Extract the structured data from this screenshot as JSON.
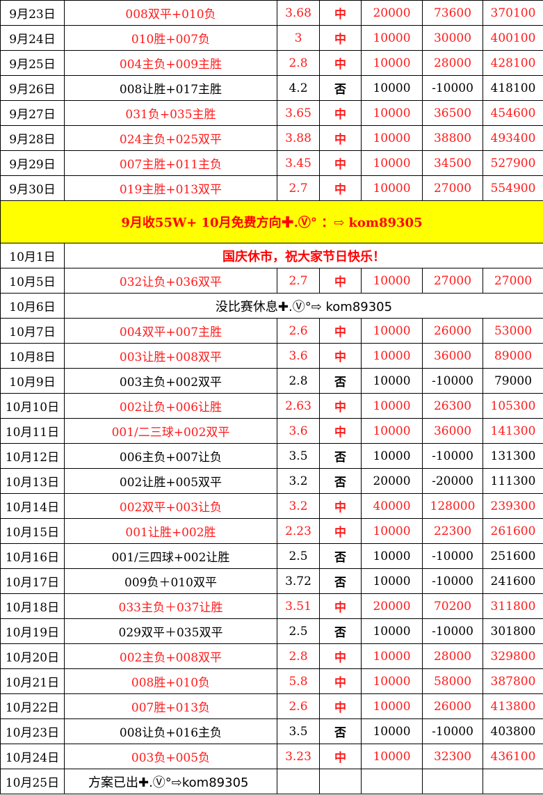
{
  "rows_sept": [
    {
      "date": "9月23日",
      "match": "008双平+010负",
      "odds": "3.68",
      "result": "中",
      "stake": "20000",
      "profit": "73600",
      "total": "370100",
      "win": true
    },
    {
      "date": "9月24日",
      "match": "010胜+007负",
      "odds": "3",
      "result": "中",
      "stake": "10000",
      "profit": "30000",
      "total": "400100",
      "win": true
    },
    {
      "date": "9月25日",
      "match": "004主负+009主胜",
      "odds": "2.8",
      "result": "中",
      "stake": "10000",
      "profit": "28000",
      "total": "428100",
      "win": true
    },
    {
      "date": "9月26日",
      "match": "008让胜+017主胜",
      "odds": "4.2",
      "result": "否",
      "stake": "10000",
      "profit": "-10000",
      "total": "418100",
      "win": false
    },
    {
      "date": "9月27日",
      "match": "031负+035主胜",
      "odds": "3.65",
      "result": "中",
      "stake": "10000",
      "profit": "36500",
      "total": "454600",
      "win": true
    },
    {
      "date": "9月28日",
      "match": "024主负+025双平",
      "odds": "3.88",
      "result": "中",
      "stake": "10000",
      "profit": "38800",
      "total": "493400",
      "win": true
    },
    {
      "date": "9月29日",
      "match": "007主胜+011主负",
      "odds": "3.45",
      "result": "中",
      "stake": "10000",
      "profit": "34500",
      "total": "527900",
      "win": true
    },
    {
      "date": "9月30日",
      "match": "019主胜+013双平",
      "odds": "2.7",
      "result": "中",
      "stake": "10000",
      "profit": "27000",
      "total": "554900",
      "win": true
    }
  ],
  "banner": "9月收55W+   10月免费方向✚.Ⓥ° ：⇨    kom89305",
  "holiday": {
    "date": "10月1日",
    "message": "国庆休市，祝大家节日快乐！"
  },
  "row_oct5": {
    "date": "10月5日",
    "match": "032让负+036双平",
    "odds": "2.7",
    "result": "中",
    "stake": "10000",
    "profit": "27000",
    "total": "27000"
  },
  "rest_day": {
    "date": "10月6日",
    "message": "没比赛休息✚.Ⓥ°⇨ kom89305"
  },
  "rows_oct": [
    {
      "date": "10月7日",
      "match": "004双平+007主胜",
      "odds": "2.6",
      "result": "中",
      "stake": "10000",
      "profit": "26000",
      "total": "53000",
      "win": true
    },
    {
      "date": "10月8日",
      "match": "003让胜+008双平",
      "odds": "3.6",
      "result": "中",
      "stake": "10000",
      "profit": "36000",
      "total": "89000",
      "win": true
    },
    {
      "date": "10月9日",
      "match": "003主负+002双平",
      "odds": "2.8",
      "result": "否",
      "stake": "10000",
      "profit": "-10000",
      "total": "79000",
      "win": false
    },
    {
      "date": "10月10日",
      "match": "002让负+006让胜",
      "odds": "2.63",
      "result": "中",
      "stake": "10000",
      "profit": "26300",
      "total": "105300",
      "win": true
    },
    {
      "date": "10月11日",
      "match": "001/二三球+002双平",
      "odds": "3.6",
      "result": "中",
      "stake": "10000",
      "profit": "36000",
      "total": "141300",
      "win": true
    },
    {
      "date": "10月12日",
      "match": "006主负+007让负",
      "odds": "3.5",
      "result": "否",
      "stake": "10000",
      "profit": "-10000",
      "total": "131300",
      "win": false
    },
    {
      "date": "10月13日",
      "match": "002让胜+005双平",
      "odds": "3.2",
      "result": "否",
      "stake": "20000",
      "profit": "-20000",
      "total": "111300",
      "win": false
    },
    {
      "date": "10月14日",
      "match": "002双平+003让负",
      "odds": "3.2",
      "result": "中",
      "stake": "40000",
      "profit": "128000",
      "total": "239300",
      "win": true
    },
    {
      "date": "10月15日",
      "match": "001让胜+002胜",
      "odds": "2.23",
      "result": "中",
      "stake": "10000",
      "profit": "22300",
      "total": "261600",
      "win": true
    },
    {
      "date": "10月16日",
      "match": "001/三四球+002让胜",
      "odds": "2.5",
      "result": "否",
      "stake": "10000",
      "profit": "-10000",
      "total": "251600",
      "win": false
    },
    {
      "date": "10月17日",
      "match": "009负＋010双平",
      "odds": "3.72",
      "result": "否",
      "stake": "10000",
      "profit": "-10000",
      "total": "241600",
      "win": false
    },
    {
      "date": "10月18日",
      "match": "033主负＋037让胜",
      "odds": "3.51",
      "result": "中",
      "stake": "20000",
      "profit": "70200",
      "total": "311800",
      "win": true
    },
    {
      "date": "10月19日",
      "match": "029双平＋035双平",
      "odds": "2.5",
      "result": "否",
      "stake": "10000",
      "profit": "-10000",
      "total": "301800",
      "win": false
    },
    {
      "date": "10月20日",
      "match": "002主负+008双平",
      "odds": "2.8",
      "result": "中",
      "stake": "10000",
      "profit": "28000",
      "total": "329800",
      "win": true
    },
    {
      "date": "10月21日",
      "match": "008胜+010负",
      "odds": "5.8",
      "result": "中",
      "stake": "10000",
      "profit": "58000",
      "total": "387800",
      "win": true
    },
    {
      "date": "10月22日",
      "match": "007胜+013负",
      "odds": "2.6",
      "result": "中",
      "stake": "10000",
      "profit": "26000",
      "total": "413800",
      "win": true
    },
    {
      "date": "10月23日",
      "match": "008让负+016主负",
      "odds": "3.5",
      "result": "否",
      "stake": "10000",
      "profit": "-10000",
      "total": "403800",
      "win": false
    },
    {
      "date": "10月24日",
      "match": "003负+005负",
      "odds": "3.23",
      "result": "中",
      "stake": "10000",
      "profit": "32300",
      "total": "436100",
      "win": true
    }
  ],
  "last_row": {
    "date": "10月25日",
    "message": "方案已出✚.Ⓥ°⇨kom89305"
  }
}
